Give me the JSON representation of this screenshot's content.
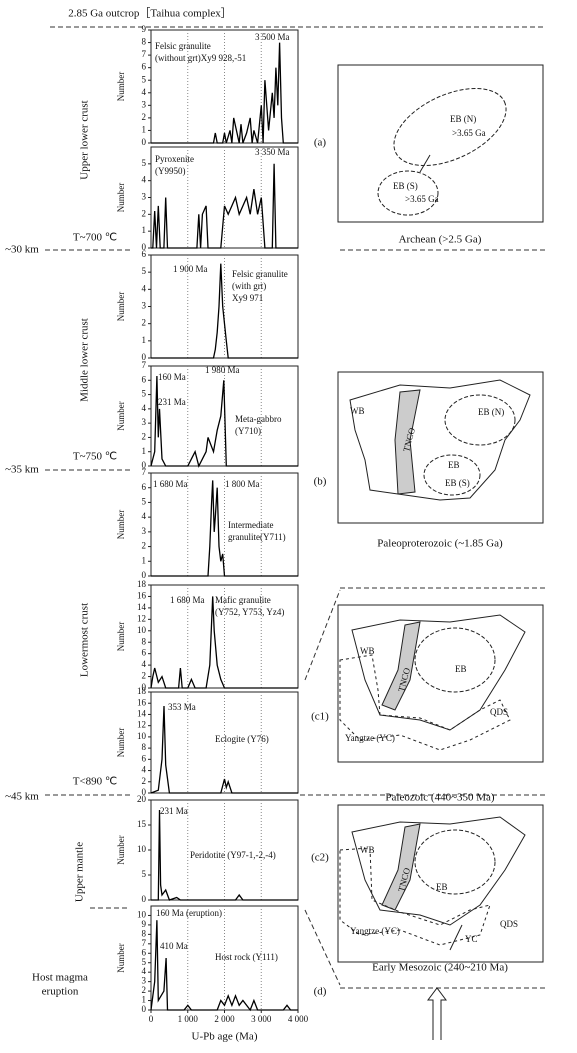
{
  "chart_data": [
    {
      "type": "line",
      "ylabel": "Number",
      "color": "#000000",
      "xlim": [
        0,
        4000
      ],
      "ylim": [
        0,
        9
      ],
      "yticks": [
        0,
        1,
        2,
        3,
        4,
        5,
        6,
        7,
        8,
        9
      ],
      "annotations": [
        "Felsic granulite",
        "(without grt)Xy9 928,-51",
        "3 500 Ma"
      ],
      "x": [
        0,
        1700,
        1750,
        1800,
        1950,
        2000,
        2050,
        2150,
        2200,
        2250,
        2400,
        2450,
        2500,
        2600,
        2700,
        2750,
        2800,
        2900,
        3000,
        3050,
        3100,
        3200,
        3300,
        3350,
        3400,
        3450,
        3500,
        3550,
        3600,
        4000
      ],
      "values": [
        0,
        0,
        0.8,
        0,
        0,
        0.8,
        0,
        1,
        0,
        2,
        0,
        1.5,
        0,
        0.8,
        2,
        0,
        1,
        0,
        3,
        0,
        5,
        1,
        4,
        2,
        6,
        3,
        8,
        2,
        0,
        0
      ]
    },
    {
      "type": "line",
      "ylabel": "Number",
      "color": "#000000",
      "xlim": [
        0,
        4000
      ],
      "ylim": [
        0,
        6
      ],
      "yticks": [
        0,
        1,
        2,
        3,
        4,
        5
      ],
      "annotations": [
        "Pyroxenite",
        "(Y9950)",
        "3 350 Ma"
      ],
      "x": [
        0,
        50,
        100,
        150,
        200,
        250,
        350,
        400,
        450,
        1250,
        1300,
        1350,
        1400,
        1500,
        1550,
        1900,
        2000,
        2100,
        2300,
        2400,
        2500,
        2600,
        2700,
        2800,
        2900,
        3000,
        3100,
        3300,
        3350,
        3400,
        4000
      ],
      "values": [
        0,
        0,
        2.2,
        0,
        2.5,
        0,
        0,
        3,
        0,
        0,
        2,
        0,
        2,
        2.5,
        0,
        0,
        2.5,
        2,
        3,
        2,
        2.5,
        3,
        2,
        3.5,
        2,
        3,
        0,
        0,
        5,
        0,
        0
      ]
    },
    {
      "type": "line",
      "ylabel": "Number",
      "color": "#000000",
      "xlim": [
        0,
        4000
      ],
      "ylim": [
        0,
        6
      ],
      "yticks": [
        0,
        1,
        2,
        3,
        4,
        5,
        6
      ],
      "annotations": [
        "1 900 Ma",
        "Felsic granulite",
        "(with grt)",
        "Xy9 971"
      ],
      "x": [
        0,
        1700,
        1750,
        1800,
        1850,
        1900,
        1950,
        2000,
        2050,
        2100,
        4000
      ],
      "values": [
        0,
        0,
        0.5,
        1.5,
        3,
        5.5,
        3,
        2,
        1,
        0,
        0
      ]
    },
    {
      "type": "line",
      "ylabel": "Number",
      "color": "#000000",
      "xlim": [
        0,
        4000
      ],
      "ylim": [
        0,
        7
      ],
      "yticks": [
        0,
        1,
        2,
        3,
        4,
        5,
        6,
        7
      ],
      "annotations": [
        "160 Ma",
        "231 Ma",
        "1 980 Ma",
        "Meta-gabbro",
        "(Y710)"
      ],
      "x": [
        0,
        100,
        160,
        200,
        231,
        300,
        400,
        500,
        1000,
        1100,
        1200,
        1300,
        1500,
        1550,
        1700,
        1800,
        1900,
        1980,
        2050,
        4000
      ],
      "values": [
        0,
        1,
        6.3,
        2,
        4,
        0.5,
        0,
        0,
        0,
        0.5,
        1,
        0,
        1,
        2,
        1,
        2.5,
        3.5,
        6,
        0,
        0
      ]
    },
    {
      "type": "line",
      "ylabel": "Number",
      "color": "#000000",
      "xlim": [
        0,
        4000
      ],
      "ylim": [
        0,
        7
      ],
      "yticks": [
        0,
        1,
        2,
        3,
        4,
        5,
        6,
        7
      ],
      "annotations": [
        "1 680 Ma",
        "1 800 Ma",
        "Intermediate",
        "granulite(Y711)"
      ],
      "x": [
        0,
        1550,
        1600,
        1650,
        1680,
        1720,
        1750,
        1800,
        1850,
        1900,
        1950,
        2000,
        4000
      ],
      "values": [
        0,
        0,
        2,
        5,
        6.5,
        3,
        4,
        6,
        2,
        1,
        1.5,
        0,
        0
      ]
    },
    {
      "type": "line",
      "ylabel": "Number",
      "color": "#000000",
      "xlim": [
        0,
        4000
      ],
      "ylim": [
        0,
        18
      ],
      "yticks": [
        0,
        2,
        4,
        6,
        8,
        10,
        12,
        14,
        16,
        18
      ],
      "annotations": [
        "1 680 Ma",
        "Mafic granulite",
        "(Y752, Y753, Yz4)"
      ],
      "x": [
        0,
        50,
        100,
        200,
        300,
        400,
        750,
        800,
        850,
        1000,
        1100,
        1200,
        1500,
        1600,
        1680,
        1720,
        1800,
        1900,
        2000,
        4000
      ],
      "values": [
        0,
        2,
        3.5,
        1,
        2,
        0,
        0,
        3.5,
        0,
        0,
        1.5,
        0,
        0,
        4,
        16,
        10,
        4,
        1.5,
        0,
        0
      ]
    },
    {
      "type": "line",
      "ylabel": "Number",
      "color": "#000000",
      "xlim": [
        0,
        4000
      ],
      "ylim": [
        0,
        18
      ],
      "yticks": [
        0,
        2,
        4,
        6,
        8,
        10,
        12,
        14,
        16,
        18
      ],
      "annotations": [
        "353 Ma",
        "Eclogite (Y76)"
      ],
      "x": [
        0,
        200,
        300,
        353,
        400,
        500,
        1900,
        2000,
        2050,
        2100,
        2200,
        4000
      ],
      "values": [
        0,
        0.5,
        6,
        15.5,
        5,
        0,
        0,
        2.5,
        1,
        2,
        0,
        0
      ]
    },
    {
      "type": "line",
      "ylabel": "Number",
      "color": "#000000",
      "xlim": [
        0,
        4000
      ],
      "ylim": [
        0,
        20
      ],
      "yticks": [
        0,
        5,
        10,
        15,
        20
      ],
      "annotations": [
        "231 Ma",
        "Peridotite (Y97-1,-2,-4)"
      ],
      "x": [
        0,
        200,
        231,
        260,
        300,
        400,
        500,
        700,
        800,
        2300,
        2400,
        2500,
        4000
      ],
      "values": [
        0,
        0,
        18,
        3,
        1,
        2,
        0,
        0.5,
        0,
        0,
        1,
        0,
        0
      ]
    },
    {
      "type": "line",
      "ylabel": "Number",
      "color": "#000000",
      "xlim": [
        0,
        4000
      ],
      "ylim": [
        0,
        11
      ],
      "yticks": [
        0,
        1,
        2,
        3,
        4,
        5,
        6,
        7,
        8,
        9,
        10
      ],
      "annotations": [
        "160 Ma (eruption)",
        "410 Ma",
        "Host rock (Y111)"
      ],
      "xlabel": "U-Pb age (Ma)",
      "xticks": [
        0,
        {
          "value": 1000,
          "label": "1 000"
        },
        {
          "value": 2000,
          "label": "2 000"
        },
        {
          "value": 3000,
          "label": "3 000"
        },
        {
          "value": 4000,
          "label": "4 000"
        }
      ],
      "x": [
        0,
        100,
        160,
        200,
        350,
        410,
        450,
        900,
        1000,
        1100,
        1800,
        1900,
        2000,
        2100,
        2200,
        2300,
        2400,
        2500,
        2700,
        2800,
        2900,
        3600,
        3700,
        3800,
        4000
      ],
      "values": [
        0,
        3,
        9.5,
        1,
        2,
        5.5,
        0,
        0,
        0.5,
        0,
        0,
        1,
        0.5,
        1.5,
        0.5,
        1.5,
        0.5,
        1,
        0,
        1,
        0,
        0,
        0.5,
        0,
        0
      ]
    }
  ],
  "figure": {
    "title": "2.85 Ga outcrop［Taihua complex］",
    "zones": [
      "Upper lower crust",
      "Middle lower crust",
      "Lowermost crust",
      "Upper mantle",
      "Host magma",
      "eruption"
    ],
    "depths": [
      "~30 km",
      "T~700 ℃",
      "~35 km",
      "T~750 ℃",
      "T<890 ℃",
      "~45 km"
    ],
    "panels": [
      "(a)",
      "(b)",
      "(c1)",
      "(c2)",
      "(d)"
    ],
    "maps": [
      {
        "caption": "Archean (>2.5 Ga)",
        "labels": [
          "EB (N)",
          ">3.65 Ga",
          "EB (S)",
          ">3.65 Ga"
        ]
      },
      {
        "caption": "Paleoproterozoic (~1.85 Ga)",
        "labels": [
          "WB",
          "TNCO",
          "EB (N)",
          "EB",
          "EB (S)"
        ]
      },
      {
        "caption": "Paleozoic (440~350 Ma)",
        "labels": [
          "WB",
          "TNCO",
          "EB",
          "QDS",
          "Yangtze (YC)"
        ]
      },
      {
        "caption": "Early Mesozoic (240~210 Ma)",
        "labels": [
          "WB",
          "TNCO",
          "EB",
          "QDS",
          "YC",
          "Yangtze (YC)"
        ]
      }
    ]
  }
}
